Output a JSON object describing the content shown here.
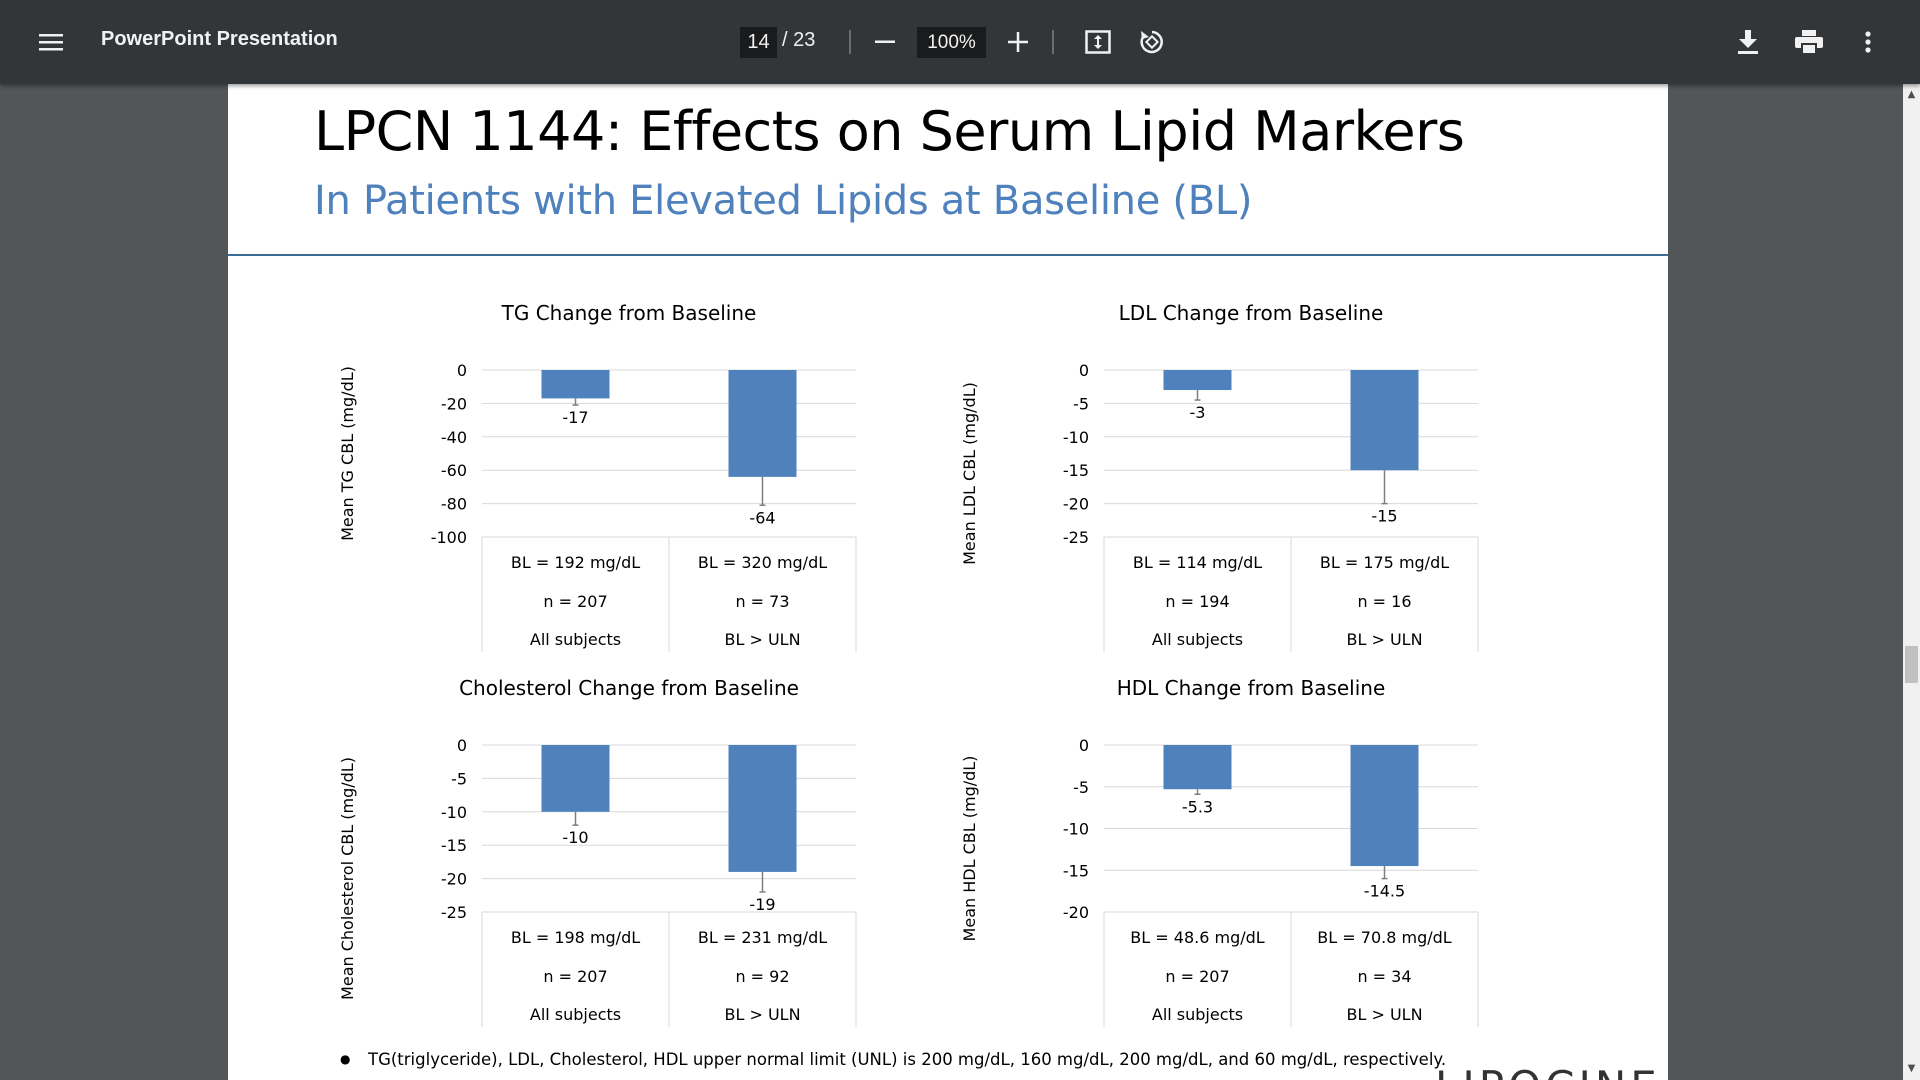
{
  "toolbar": {
    "title": "PowerPoint Presentation",
    "page_current": "14",
    "page_total": "/ 23",
    "zoom": "100%",
    "icons": [
      "menu-icon",
      "zoom-out-icon",
      "zoom-in-icon",
      "fit-page-icon",
      "rotate-icon",
      "download-icon",
      "print-icon",
      "more-options-icon"
    ]
  },
  "slide": {
    "title": "LPCN 1144: Effects on Serum Lipid Markers",
    "subtitle": "In Patients with Elevated Lipids at Baseline (BL)",
    "footnote": "TG(triglyceride), LDL, Cholesterol, HDL upper normal limit (UNL) is 200 mg/dL, 160 mg/dL, 200 mg/dL, and 60 mg/dL, respectively.",
    "logo_text": "LIPOCINE"
  },
  "colors": {
    "bar": "#4f81bd",
    "subtitle": "#4f81bd",
    "rule": "#3a6c96"
  },
  "chart_data": [
    {
      "id": "tg",
      "type": "bar",
      "title": "TG Change from Baseline",
      "ylabel": "Mean TG CBL (mg/dL)",
      "ylim": [
        -100,
        0
      ],
      "yticks": [
        0,
        -20,
        -40,
        -60,
        -80,
        -100
      ],
      "categories": [
        {
          "bl": "BL = 192 mg/dL",
          "n": "n = 207",
          "group": "All subjects"
        },
        {
          "bl": "BL = 320 mg/dL",
          "n": "n = 73",
          "group": "BL > ULN"
        }
      ],
      "values": [
        -17,
        -64
      ],
      "errors": [
        4,
        17
      ],
      "value_labels": [
        "-17",
        "-64"
      ]
    },
    {
      "id": "ldl",
      "type": "bar",
      "title": "LDL Change from Baseline",
      "ylabel": "Mean LDL CBL (mg/dL)",
      "ylim": [
        -25,
        0
      ],
      "yticks": [
        0,
        -5,
        -10,
        -15,
        -20,
        -25
      ],
      "categories": [
        {
          "bl": "BL = 114 mg/dL",
          "n": "n = 194",
          "group": "All subjects"
        },
        {
          "bl": "BL = 175 mg/dL",
          "n": "n = 16",
          "group": "BL > ULN"
        }
      ],
      "values": [
        -3,
        -15
      ],
      "errors": [
        1.5,
        5
      ],
      "value_labels": [
        "-3",
        "-15"
      ]
    },
    {
      "id": "chol",
      "type": "bar",
      "title": "Cholesterol Change from Baseline",
      "ylabel": "Mean Cholesterol CBL (mg/dL)",
      "ylim": [
        -25,
        0
      ],
      "yticks": [
        0,
        -5,
        -10,
        -15,
        -20,
        -25
      ],
      "categories": [
        {
          "bl": "BL = 198 mg/dL",
          "n": "n = 207",
          "group": "All subjects"
        },
        {
          "bl": "BL = 231 mg/dL",
          "n": "n = 92",
          "group": "BL > ULN"
        }
      ],
      "values": [
        -10,
        -19
      ],
      "errors": [
        2,
        3
      ],
      "value_labels": [
        "-10",
        "-19"
      ]
    },
    {
      "id": "hdl",
      "type": "bar",
      "title": "HDL Change from Baseline",
      "ylabel": "Mean HDL CBL (mg/dL)",
      "ylim": [
        -20,
        0
      ],
      "yticks": [
        0,
        -5,
        -10,
        -15,
        -20
      ],
      "categories": [
        {
          "bl": "BL = 48.6 mg/dL",
          "n": "n = 207",
          "group": "All subjects"
        },
        {
          "bl": "BL = 70.8 mg/dL",
          "n": "n = 34",
          "group": "BL > ULN"
        }
      ],
      "values": [
        -5.3,
        -14.5
      ],
      "errors": [
        0.6,
        1.5
      ],
      "value_labels": [
        "-5.3",
        "-14.5"
      ]
    }
  ]
}
